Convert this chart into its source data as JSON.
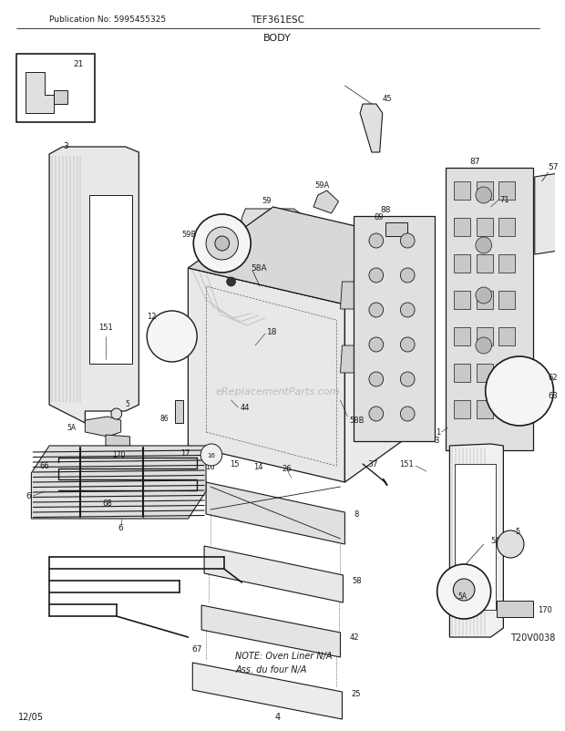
{
  "title": "BODY",
  "model": "TEF361ESC",
  "pub_no": "Publication No: 5995455325",
  "date": "12/05",
  "page": "4",
  "diagram_ref": "T20V0038",
  "note_line1": "NOTE: Oven Liner N/A",
  "note_line2": "Ass. du four N/A",
  "watermark": "eReplacementParts.com",
  "bg_color": "#ffffff",
  "line_color": "#1a1a1a",
  "fig_width": 6.2,
  "fig_height": 8.03,
  "dpi": 100
}
